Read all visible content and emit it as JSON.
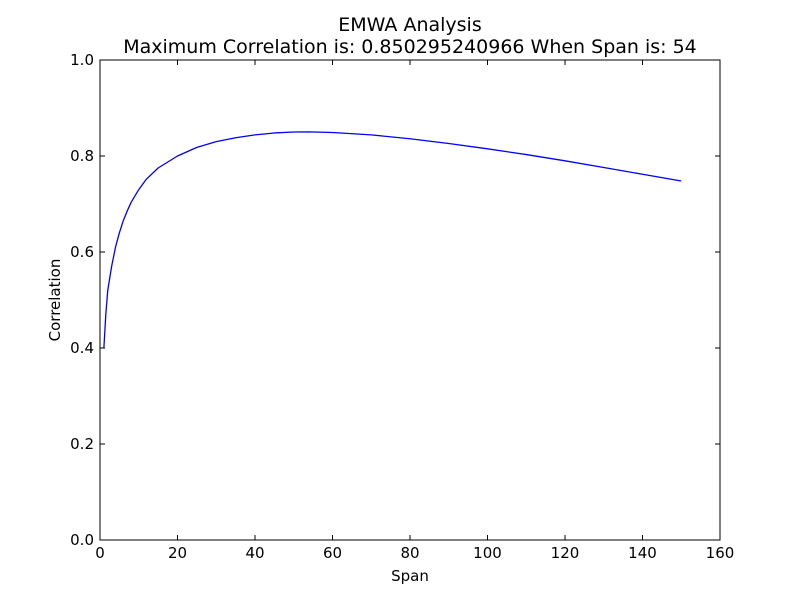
{
  "chart_data": {
    "type": "line",
    "title": "EMWA Analysis",
    "subtitle": "Maximum Correlation is: 0.850295240966 When Span is: 54",
    "xlabel": "Span",
    "ylabel": "Correlation",
    "xlim": [
      0,
      160
    ],
    "ylim": [
      0.0,
      1.0
    ],
    "xticks": [
      "0",
      "20",
      "40",
      "60",
      "80",
      "100",
      "120",
      "140",
      "160"
    ],
    "yticks": [
      "0.0",
      "0.2",
      "0.4",
      "0.6",
      "0.8",
      "1.0"
    ],
    "grid": false,
    "line_color": "#0000ff",
    "x": [
      1,
      1.5,
      2,
      3,
      4,
      5,
      6,
      7,
      8,
      10,
      12,
      15,
      20,
      25,
      30,
      35,
      40,
      45,
      50,
      54,
      60,
      70,
      80,
      90,
      100,
      110,
      120,
      130,
      140,
      150
    ],
    "y": [
      0.4,
      0.47,
      0.52,
      0.57,
      0.61,
      0.64,
      0.665,
      0.685,
      0.703,
      0.73,
      0.752,
      0.775,
      0.8,
      0.818,
      0.83,
      0.838,
      0.844,
      0.848,
      0.85,
      0.8503,
      0.849,
      0.844,
      0.836,
      0.826,
      0.815,
      0.803,
      0.79,
      0.776,
      0.762,
      0.748
    ]
  }
}
